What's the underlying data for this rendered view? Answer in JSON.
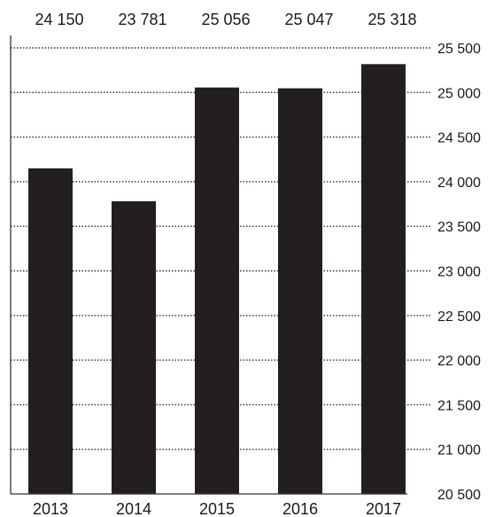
{
  "chart_data": {
    "type": "bar",
    "categories": [
      "2013",
      "2014",
      "2015",
      "2016",
      "2017"
    ],
    "values": [
      24150,
      23781,
      25056,
      25047,
      25318
    ],
    "value_labels": [
      "24 150",
      "23 781",
      "25 056",
      "25 047",
      "25 318"
    ],
    "title": "",
    "xlabel": "",
    "ylabel": "",
    "ylim": [
      20500,
      25500
    ],
    "yticks": [
      20500,
      21000,
      21500,
      22000,
      22500,
      23000,
      23500,
      24000,
      24500,
      25000,
      25500
    ],
    "ytick_labels": [
      "20 500",
      "21 000",
      "21 500",
      "22 000",
      "22 500",
      "23 000",
      "23 500",
      "24 000",
      "24 500",
      "25 000",
      "25 500"
    ],
    "y_axis_side": "right",
    "value_labels_position": "top",
    "grid": true,
    "bar_color": "#231f20",
    "grid_color": "#1f2a55"
  }
}
